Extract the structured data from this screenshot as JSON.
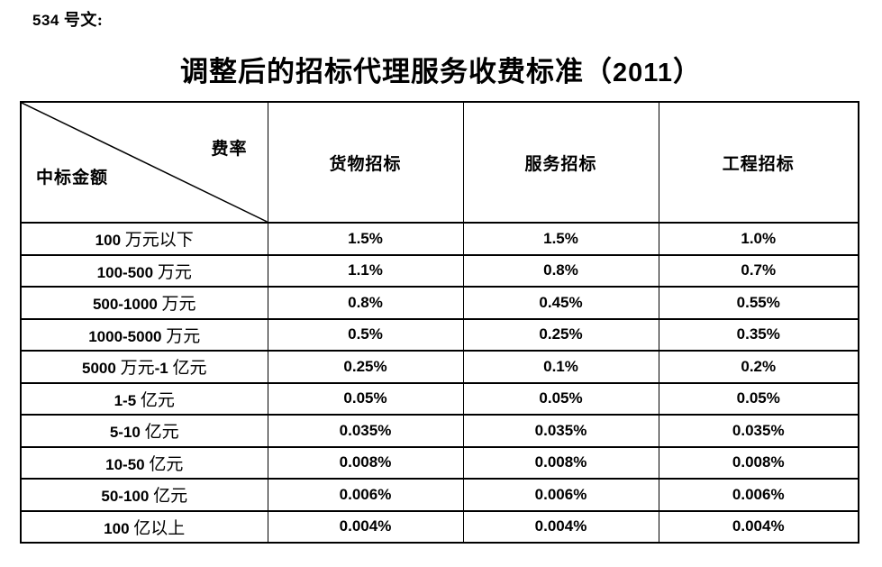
{
  "doc_label": "534 号文:",
  "title": "调整后的招标代理服务收费标准（2011）",
  "colors": {
    "text": "#000000",
    "border": "#000000",
    "background": "#ffffff"
  },
  "table": {
    "corner": {
      "top_right": "费率",
      "bottom_left": "中标金额"
    },
    "columns": [
      "货物招标",
      "服务招标",
      "工程招标"
    ],
    "rows": [
      {
        "label": "100 万元以下",
        "values": [
          "1.5%",
          "1.5%",
          "1.0%"
        ]
      },
      {
        "label": "100-500 万元",
        "values": [
          "1.1%",
          "0.8%",
          "0.7%"
        ]
      },
      {
        "label": "500-1000 万元",
        "values": [
          "0.8%",
          "0.45%",
          "0.55%"
        ]
      },
      {
        "label": "1000-5000 万元",
        "values": [
          "0.5%",
          "0.25%",
          "0.35%"
        ]
      },
      {
        "label": "5000 万元-1 亿元",
        "values": [
          "0.25%",
          "0.1%",
          "0.2%"
        ]
      },
      {
        "label": "1-5 亿元",
        "values": [
          "0.05%",
          "0.05%",
          "0.05%"
        ]
      },
      {
        "label": "5-10 亿元",
        "values": [
          "0.035%",
          "0.035%",
          "0.035%"
        ]
      },
      {
        "label": "10-50 亿元",
        "values": [
          "0.008%",
          "0.008%",
          "0.008%"
        ]
      },
      {
        "label": "50-100 亿元",
        "values": [
          "0.006%",
          "0.006%",
          "0.006%"
        ]
      },
      {
        "label": "100 亿以上",
        "values": [
          "0.004%",
          "0.004%",
          "0.004%"
        ]
      }
    ]
  }
}
